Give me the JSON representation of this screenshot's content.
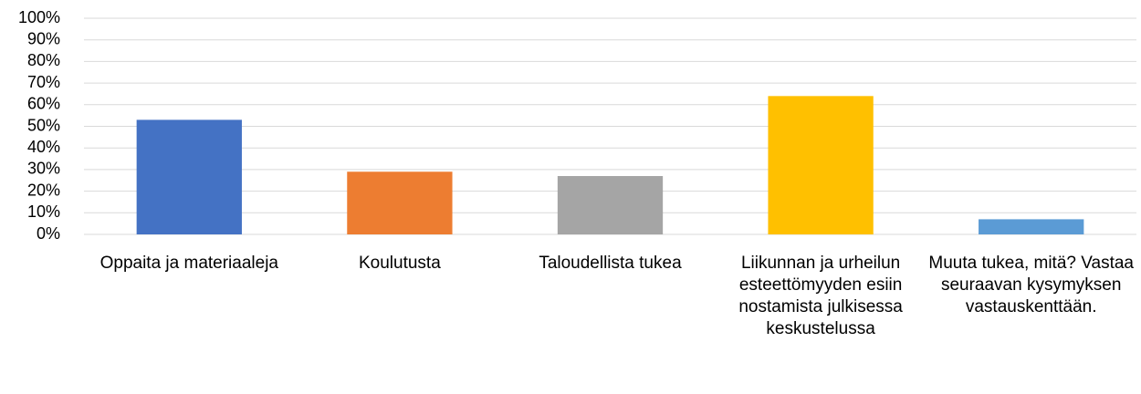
{
  "chart_data": {
    "type": "bar",
    "categories": [
      "Oppaita ja materiaaleja",
      "Koulutusta",
      "Taloudellista tukea",
      "Liikunnan ja urheilun esteettömyyden esiin nostamista julkisessa keskustelussa",
      "Muuta tukea, mitä? Vastaa seuraavan kysymyksen vastauskenttään."
    ],
    "values": [
      53,
      29,
      27,
      64,
      7
    ],
    "colors": [
      "#4472c4",
      "#ed7d31",
      "#a5a5a5",
      "#ffc000",
      "#5b9bd5"
    ],
    "ylim": [
      0,
      100
    ],
    "yticks": [
      {
        "value": 0,
        "label": "0%"
      },
      {
        "value": 10,
        "label": "10%"
      },
      {
        "value": 20,
        "label": "20%"
      },
      {
        "value": 30,
        "label": "30%"
      },
      {
        "value": 40,
        "label": "40%"
      },
      {
        "value": 50,
        "label": "50%"
      },
      {
        "value": 60,
        "label": "60%"
      },
      {
        "value": 70,
        "label": "70%"
      },
      {
        "value": 80,
        "label": "80%"
      },
      {
        "value": 90,
        "label": "90%"
      },
      {
        "value": 100,
        "label": "100%"
      }
    ],
    "grid": true
  }
}
